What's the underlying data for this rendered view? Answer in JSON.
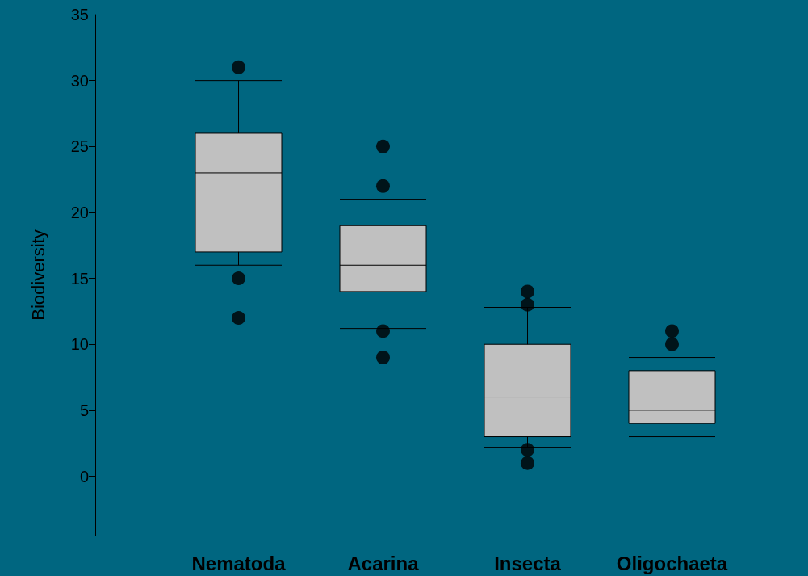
{
  "chart_data": {
    "type": "box",
    "ylabel": "Biodiversity",
    "categories": [
      "Nematoda",
      "Acarina",
      "Insecta",
      "Oligochaeta"
    ],
    "boxes": [
      {
        "low": 16,
        "q1": 17,
        "median": 23,
        "q3": 26,
        "high": 30,
        "outliers": [
          31,
          15,
          12
        ]
      },
      {
        "low": 11.2,
        "q1": 14,
        "median": 16,
        "q3": 19,
        "high": 21,
        "outliers": [
          25,
          22,
          11,
          9
        ]
      },
      {
        "low": 2.2,
        "q1": 3,
        "median": 6,
        "q3": 10,
        "high": 12.8,
        "outliers": [
          14,
          13,
          2,
          1
        ]
      },
      {
        "low": 3,
        "q1": 4,
        "median": 5,
        "q3": 8,
        "high": 9,
        "outliers": [
          11,
          10
        ]
      }
    ],
    "color": "#c0c0c0",
    "ylim": [
      -4.5,
      35
    ],
    "yticks": [
      0,
      5,
      10,
      15,
      20,
      25,
      30,
      35
    ],
    "grid": false,
    "marker": "circle"
  }
}
